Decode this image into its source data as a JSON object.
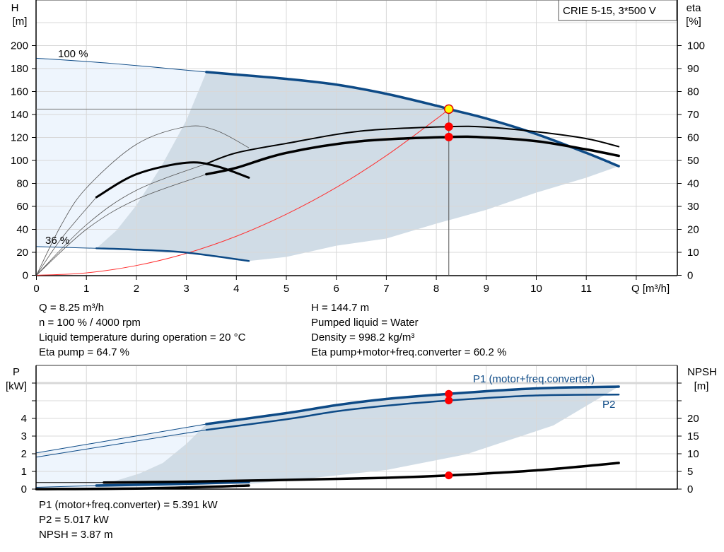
{
  "colors": {
    "head": "#0d4a86",
    "light_region": "#eef5fd",
    "dark_region": "#d0dce6",
    "system_curve": "#ff3030",
    "op_point": "#ffff00",
    "marker": "#ff0000",
    "grid": "#d8d8d8"
  },
  "chart_data": [
    {
      "type": "line",
      "title": "CRIE 5-15, 3*500 V",
      "xlabel": "Q [m³/h]",
      "ylabel_left": [
        "H",
        "[m]"
      ],
      "ylabel_right": [
        "eta",
        "[%]"
      ],
      "xlim": [
        0,
        12.85
      ],
      "ylim_left": [
        0,
        240
      ],
      "ylim_right": [
        0,
        120
      ],
      "grid": true,
      "x_ticks": [
        "0",
        "1",
        "2",
        "3",
        "4",
        "5",
        "6",
        "7",
        "8",
        "9",
        "10",
        "11"
      ],
      "y_ticks_left": [
        "0",
        "20",
        "40",
        "60",
        "80",
        "100",
        "120",
        "140",
        "160",
        "180",
        "200"
      ],
      "y_ticks_right": [
        "0",
        "10",
        "20",
        "30",
        "40",
        "50",
        "60",
        "70",
        "80",
        "90",
        "100"
      ],
      "curve_labels": {
        "max_speed": "100 %",
        "min_speed": "36 %"
      },
      "series": [
        {
          "id": "head_100",
          "axis": "H",
          "thin": [
            [
              0,
              189
            ],
            [
              1.5,
              184.5
            ],
            [
              3.4,
              177
            ]
          ],
          "thick": [
            [
              3.4,
              177
            ],
            [
              4,
              174.8
            ],
            [
              5,
              171
            ],
            [
              6,
              166
            ],
            [
              7,
              158
            ],
            [
              8,
              147.7
            ],
            [
              8.25,
              144.7
            ],
            [
              9,
              136.5
            ],
            [
              10,
              123
            ],
            [
              11,
              106.6
            ],
            [
              11.65,
              95
            ]
          ]
        },
        {
          "id": "head_36",
          "axis": "H",
          "thin": [
            [
              0,
              25
            ],
            [
              1.2,
              23.5
            ]
          ],
          "thick": [
            [
              1.2,
              23.5
            ],
            [
              2,
              22.3
            ],
            [
              3,
              19.8
            ],
            [
              4.25,
              12.5
            ]
          ]
        },
        {
          "id": "eta_pump_100",
          "axis": "eta",
          "thin": [
            [
              0,
              0
            ],
            [
              1,
              22
            ],
            [
              2,
              37
            ],
            [
              3.4,
              48.6
            ]
          ],
          "thick": [
            [
              3.4,
              48.6
            ],
            [
              4,
              53.3
            ],
            [
              5,
              57.4
            ],
            [
              6.5,
              62.8
            ],
            [
              8.25,
              64.7
            ],
            [
              9,
              64.5
            ],
            [
              10,
              62.5
            ],
            [
              11,
              59.5
            ],
            [
              11.65,
              56
            ]
          ]
        },
        {
          "id": "eta_total_100",
          "axis": "eta",
          "thin": [
            [
              0,
              0
            ],
            [
              1,
              20
            ],
            [
              2,
              33
            ],
            [
              3.4,
              44
            ]
          ],
          "thick": [
            [
              3.4,
              44
            ],
            [
              4,
              46.8
            ],
            [
              5,
              53.3
            ],
            [
              6.5,
              58.4
            ],
            [
              8.25,
              60.2
            ],
            [
              9,
              60
            ],
            [
              10,
              58.4
            ],
            [
              11,
              54.8
            ],
            [
              11.65,
              52
            ]
          ]
        },
        {
          "id": "eta_pump_36",
          "axis": "eta",
          "thin": [
            [
              0,
              0
            ],
            [
              0.5,
              22
            ],
            [
              1,
              38
            ],
            [
              2,
              57
            ],
            [
              3,
              64.7
            ],
            [
              3.6,
              63
            ],
            [
              4.25,
              55.5
            ]
          ],
          "thick": []
        },
        {
          "id": "eta_total_36",
          "axis": "eta",
          "thin": [
            [
              0,
              0
            ],
            [
              0.5,
              16
            ],
            [
              1.2,
              34
            ]
          ],
          "thick": [
            [
              1.2,
              34
            ],
            [
              2,
              44
            ],
            [
              3,
              49
            ],
            [
              3.6,
              47.5
            ],
            [
              4.25,
              42.5
            ]
          ]
        }
      ],
      "system_curve": [
        [
          0,
          0
        ],
        [
          1,
          2.1
        ],
        [
          2,
          8.5
        ],
        [
          3,
          19.1
        ],
        [
          4,
          34
        ],
        [
          5,
          53.2
        ],
        [
          6,
          76.5
        ],
        [
          7,
          104.2
        ],
        [
          8,
          136.1
        ],
        [
          8.25,
          144.7
        ]
      ],
      "range_left_boundary": [
        [
          1.2,
          23.5
        ],
        [
          1.6,
          39
        ],
        [
          2,
          61
        ],
        [
          2.5,
          95
        ],
        [
          3,
          135
        ],
        [
          3.4,
          177
        ]
      ],
      "range_lower_boundary": [
        [
          4.25,
          12.5
        ],
        [
          5,
          16
        ],
        [
          6,
          25.8
        ],
        [
          7,
          32
        ],
        [
          8,
          45
        ],
        [
          9,
          57
        ],
        [
          10,
          72
        ],
        [
          11,
          85
        ],
        [
          11.65,
          95
        ]
      ],
      "operating_point": {
        "q": 8.25,
        "h": 144.7,
        "eta_pump": 64.7,
        "eta_total": 60.2
      }
    },
    {
      "type": "line",
      "xlim": [
        0,
        12.85
      ],
      "ylabel_left": [
        "P",
        "[kW]"
      ],
      "ylabel_right": [
        "NPSH",
        "[m]"
      ],
      "ylim_left": [
        0,
        7
      ],
      "ylim_right": [
        0,
        35
      ],
      "grid": true,
      "y_ticks_left": [
        "0",
        "1",
        "2",
        "3",
        "4"
      ],
      "y_ticks_right": [
        "0",
        "5",
        "10",
        "15",
        "20"
      ],
      "series_labels": {
        "p1": "P1 (motor+freq.converter)",
        "p2": "P2"
      },
      "series": [
        {
          "id": "p1",
          "axis": "P",
          "color": "#0d4a86",
          "thin": [
            [
              0,
              2.05
            ],
            [
              3.4,
              3.68
            ]
          ],
          "thick": [
            [
              3.4,
              3.68
            ],
            [
              5,
              4.3
            ],
            [
              6,
              4.75
            ],
            [
              7,
              5.1
            ],
            [
              8.25,
              5.391
            ],
            [
              10,
              5.7
            ],
            [
              11.65,
              5.8
            ]
          ]
        },
        {
          "id": "p2",
          "axis": "P",
          "color": "#0d4a86",
          "thin": [
            [
              0,
              1.81
            ],
            [
              3.4,
              3.35
            ]
          ],
          "thick": [
            [
              3.4,
              3.35
            ],
            [
              5,
              3.95
            ],
            [
              6,
              4.4
            ],
            [
              7,
              4.72
            ],
            [
              8.25,
              5.017
            ],
            [
              10,
              5.3
            ],
            [
              11.65,
              5.35
            ]
          ]
        },
        {
          "id": "p1_36",
          "axis": "P",
          "color": "#0d4a86",
          "thin": [
            [
              0,
              0.1
            ],
            [
              1.2,
              0.2
            ]
          ],
          "thick": [
            [
              1.2,
              0.2
            ],
            [
              2.5,
              0.27
            ],
            [
              4.25,
              0.4
            ]
          ]
        },
        {
          "id": "npsh",
          "axis": "NPSH",
          "color": "#000000",
          "thin": [
            [
              0,
              1.86
            ],
            [
              1.35,
              1.86
            ]
          ],
          "thick": [
            [
              1.35,
              1.86
            ],
            [
              3,
              2.1
            ],
            [
              5,
              2.6
            ],
            [
              7,
              3.2
            ],
            [
              8.25,
              3.87
            ],
            [
              10,
              5.3
            ],
            [
              11.65,
              7.4
            ]
          ]
        },
        {
          "id": "npsh_36",
          "axis": "NPSH",
          "color": "#000000",
          "thin": [],
          "thick": [
            [
              0,
              0
            ],
            [
              2.2,
              0.2
            ],
            [
              4.25,
              1.0
            ]
          ]
        }
      ],
      "range_left_boundary": [
        [
          1.2,
          0.1
        ],
        [
          1.41,
          0.32
        ],
        [
          2.06,
          0.88
        ],
        [
          2.53,
          1.48
        ],
        [
          3,
          2.56
        ],
        [
          3.4,
          3.68
        ]
      ],
      "range_lower_boundary": [
        [
          1.2,
          0.1
        ],
        [
          4.25,
          0.3
        ],
        [
          5.04,
          0.48
        ],
        [
          7,
          1.08
        ],
        [
          8.6,
          1.97
        ],
        [
          10.34,
          3.6
        ],
        [
          11.65,
          5.8
        ]
      ],
      "operating_point": {
        "q": 8.25,
        "p1": 5.391,
        "p2": 5.017,
        "npsh": 3.87
      }
    }
  ],
  "info_top": {
    "left": [
      "Q = 8.25 m³/h",
      "n = 100 % / 4000 rpm",
      "Liquid temperature during operation = 20 °C",
      "Eta pump = 64.7 %"
    ],
    "right": [
      "H = 144.7 m",
      "Pumped liquid = Water",
      "Density = 998.2 kg/m³",
      "Eta pump+motor+freq.converter = 60.2 %"
    ]
  },
  "info_bottom": [
    "P1 (motor+freq.converter) = 5.391 kW",
    "P2 = 5.017 kW",
    "NPSH = 3.87 m"
  ]
}
